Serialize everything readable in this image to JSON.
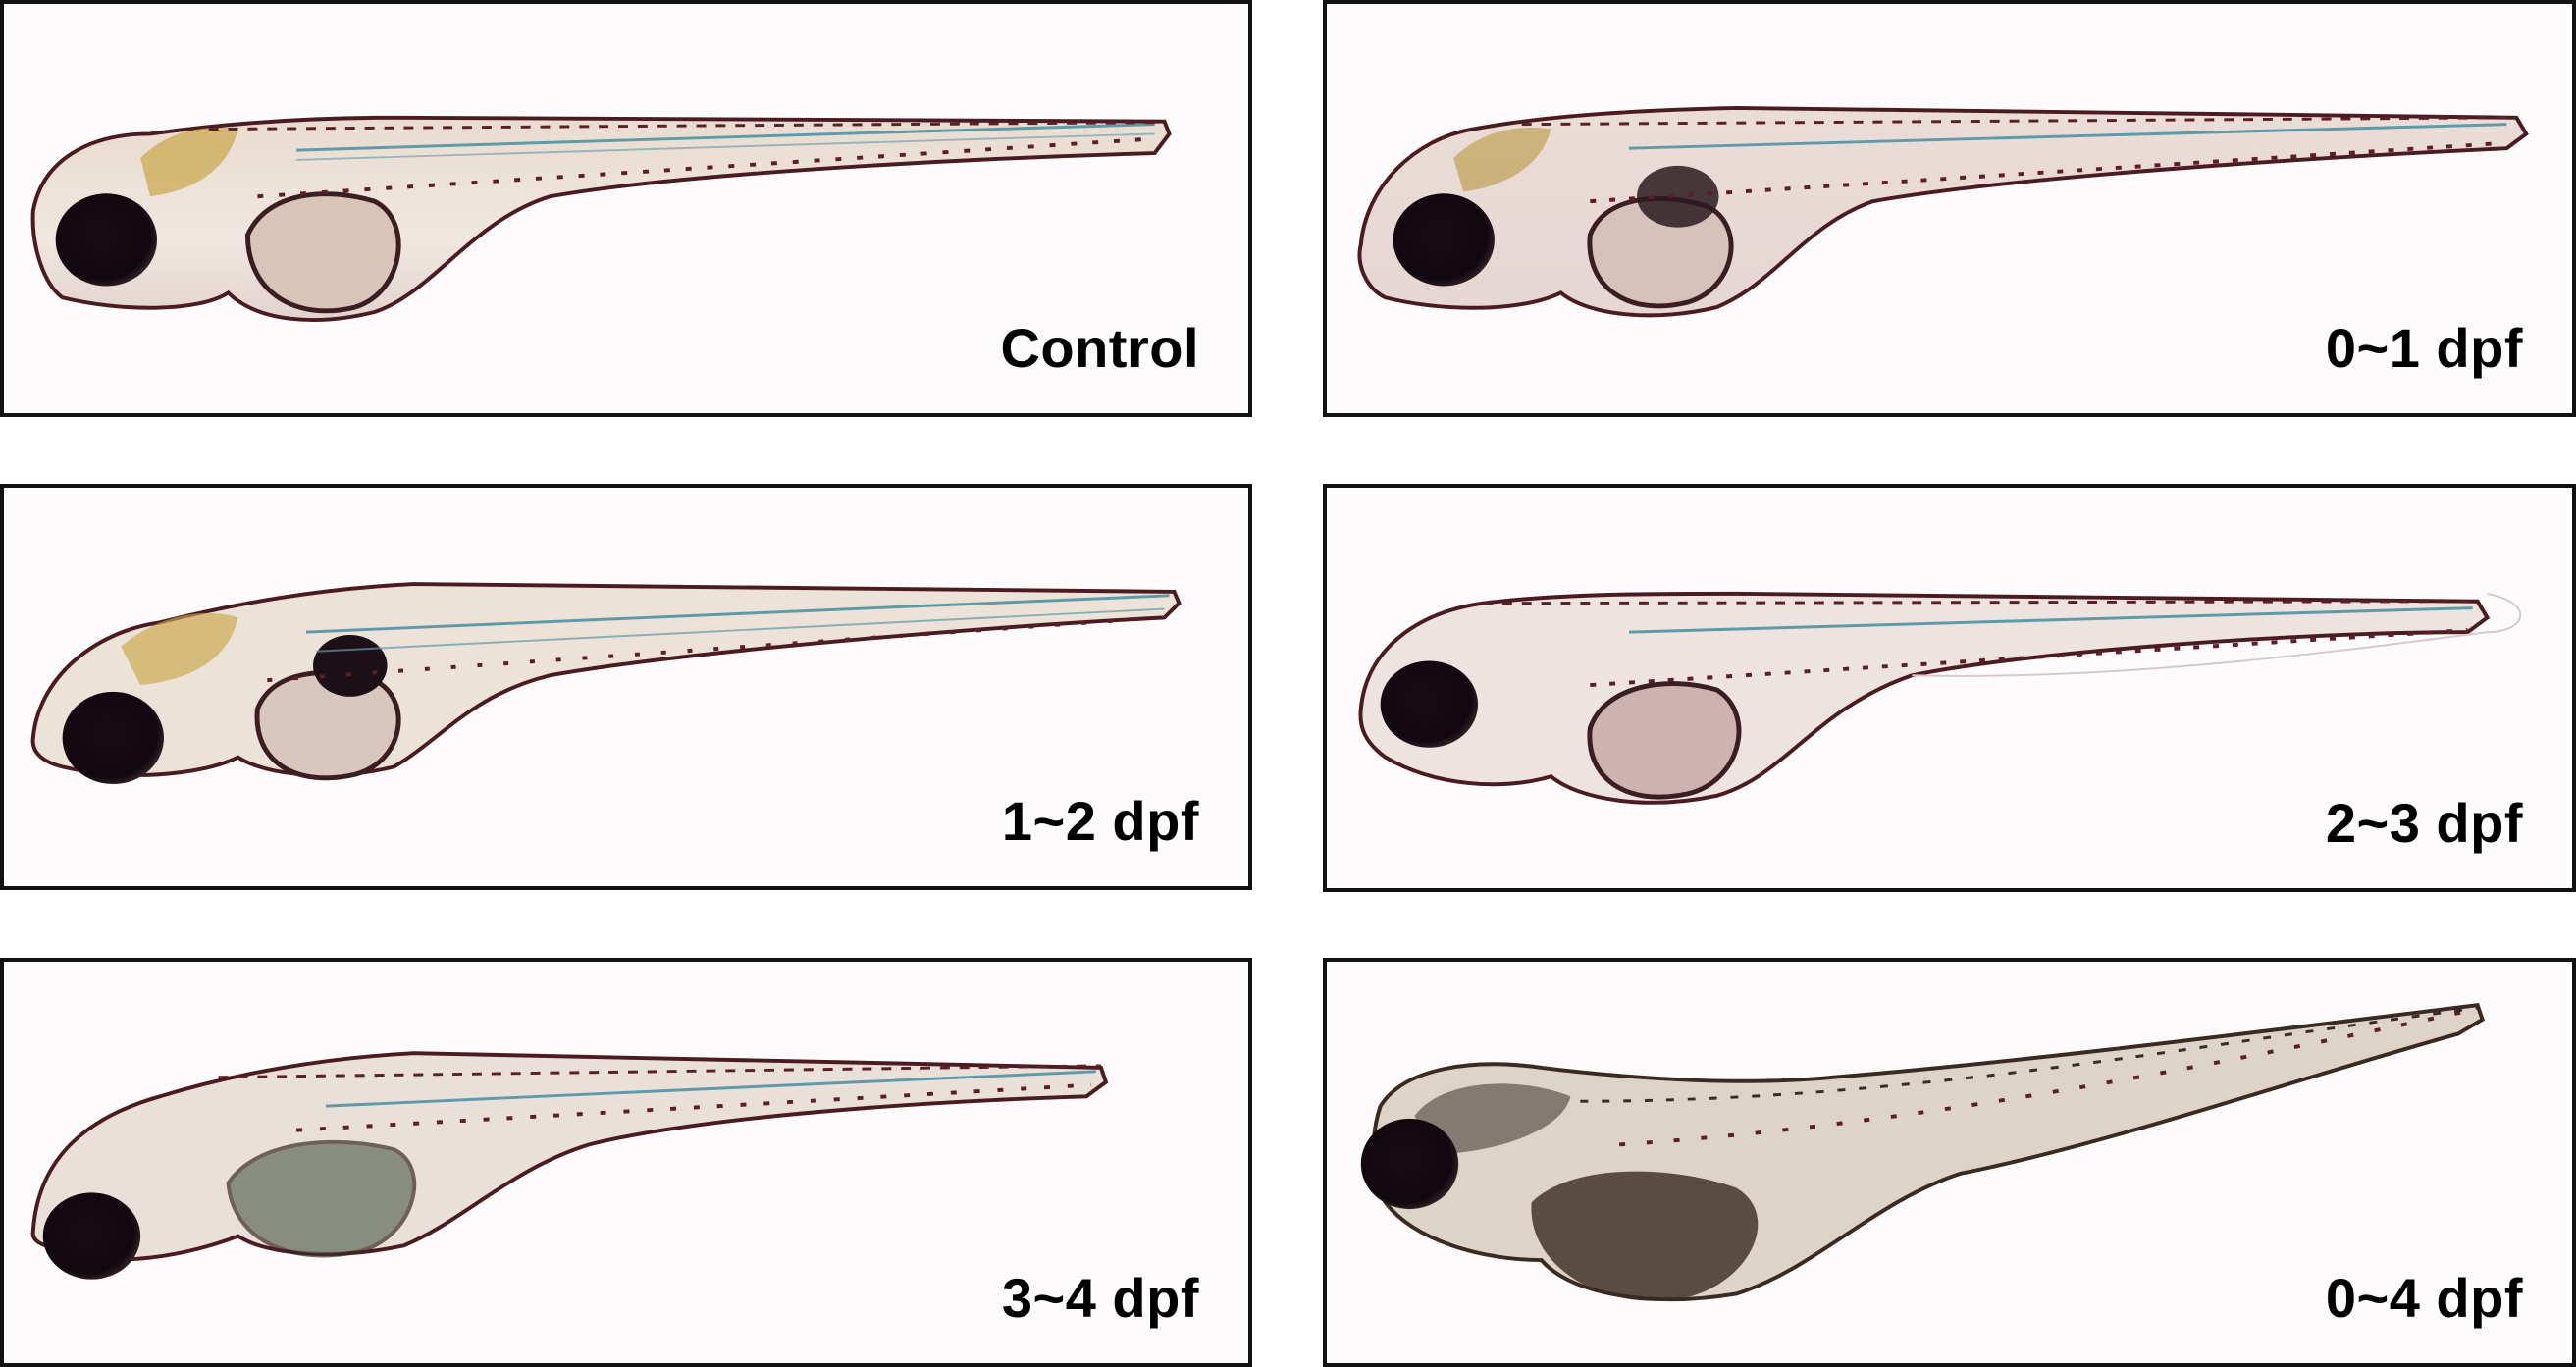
{
  "panels": [
    {
      "id": "control",
      "label": "Control"
    },
    {
      "id": "dpf-0-1",
      "label": "0~1 dpf"
    },
    {
      "id": "dpf-1-2",
      "label": "1~2 dpf"
    },
    {
      "id": "dpf-2-3",
      "label": "2~3 dpf"
    },
    {
      "id": "dpf-3-4",
      "label": "3~4 dpf"
    },
    {
      "id": "dpf-0-4",
      "label": "0~4 dpf"
    }
  ],
  "colors": {
    "border": "#111111",
    "background": "#fdfbfb",
    "eye": "#140a0e",
    "pigment": "#5a1f28",
    "notochord": "#5f9aa8",
    "yolk_dark": "#3a2a22"
  }
}
